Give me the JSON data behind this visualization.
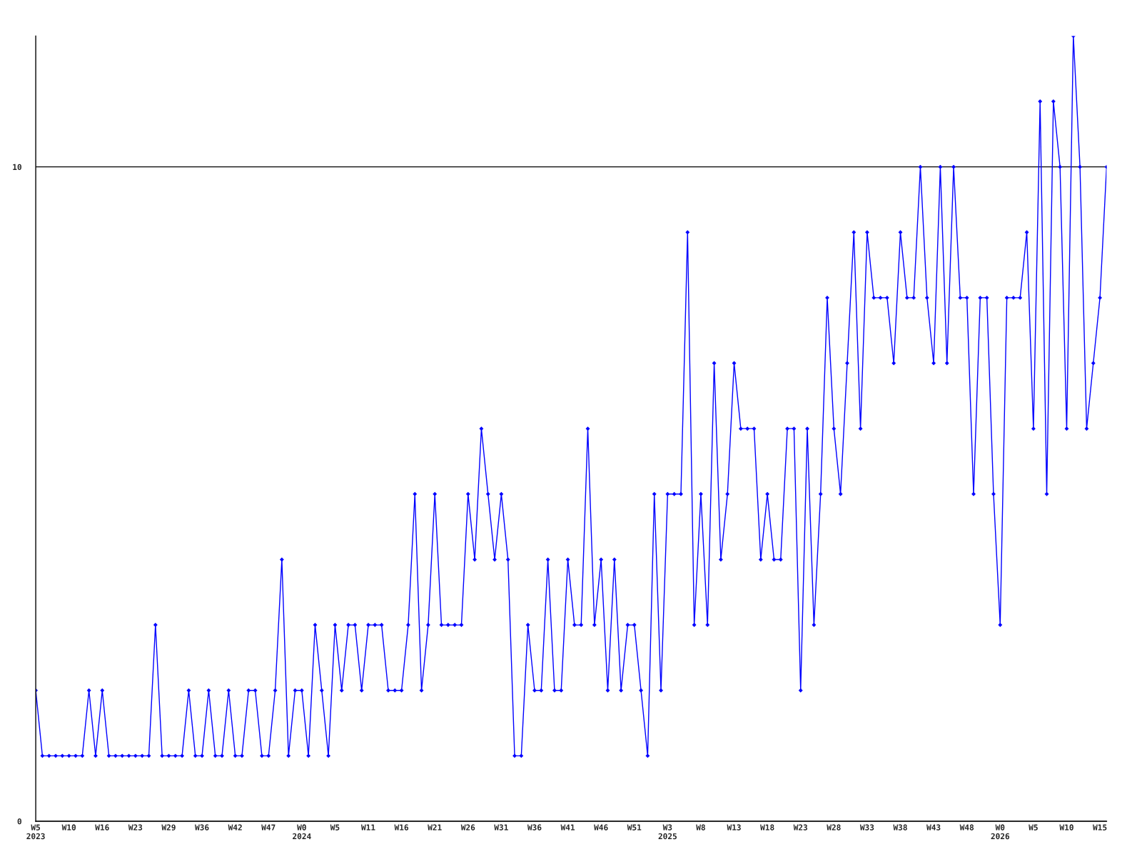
{
  "chart_data": {
    "type": "line",
    "categories": [
      "W5\n2023",
      null,
      null,
      null,
      null,
      "W10",
      null,
      null,
      null,
      null,
      "W16",
      null,
      null,
      null,
      null,
      "W23",
      null,
      null,
      null,
      null,
      "W29",
      null,
      null,
      null,
      null,
      "W36",
      null,
      null,
      null,
      null,
      "W42",
      null,
      null,
      null,
      null,
      "W47",
      null,
      null,
      null,
      null,
      "W0\n2024",
      null,
      null,
      null,
      null,
      "W5",
      null,
      null,
      null,
      null,
      "W11",
      null,
      null,
      null,
      null,
      "W16",
      null,
      null,
      null,
      null,
      "W21",
      null,
      null,
      null,
      null,
      "W26",
      null,
      null,
      null,
      null,
      "W31",
      null,
      null,
      null,
      null,
      "W36",
      null,
      null,
      null,
      null,
      "W41",
      null,
      null,
      null,
      null,
      "W46",
      null,
      null,
      null,
      null,
      "W51",
      null,
      null,
      null,
      null,
      "W3\n2025",
      null,
      null,
      null,
      null,
      "W8",
      null,
      null,
      null,
      null,
      "W13",
      null,
      null,
      null,
      null,
      "W18",
      null,
      null,
      null,
      null,
      "W23",
      null,
      null,
      null,
      null,
      "W28",
      null,
      null,
      null,
      null,
      "W33",
      null,
      null,
      null,
      null,
      "W38",
      null,
      null,
      null,
      null,
      "W43",
      null,
      null,
      null,
      null,
      "W48",
      null,
      null,
      null,
      null,
      "W0\n2026",
      null,
      null,
      null,
      null,
      "W5",
      null,
      null,
      null,
      null,
      "W10",
      null,
      null,
      null,
      null,
      "W15",
      null
    ],
    "series": [
      {
        "color": "#0000ff",
        "values": [
          2,
          1,
          1,
          1,
          1,
          1,
          1,
          1,
          2,
          1,
          2,
          1,
          1,
          1,
          1,
          1,
          1,
          1,
          3,
          1,
          1,
          1,
          1,
          2,
          1,
          1,
          2,
          1,
          1,
          2,
          1,
          1,
          2,
          2,
          1,
          1,
          2,
          4,
          1,
          2,
          2,
          1,
          3,
          2,
          1,
          3,
          2,
          3,
          3,
          2,
          3,
          3,
          3,
          2,
          2,
          2,
          3,
          5,
          2,
          3,
          5,
          3,
          3,
          3,
          3,
          5,
          4,
          6,
          5,
          4,
          5,
          4,
          1,
          1,
          3,
          2,
          2,
          4,
          2,
          2,
          4,
          3,
          3,
          6,
          3,
          4,
          2,
          4,
          2,
          3,
          3,
          2,
          1,
          5,
          2,
          5,
          5,
          5,
          9,
          3,
          5,
          3,
          7,
          4,
          5,
          7,
          6,
          6,
          6,
          4,
          5,
          4,
          4,
          6,
          6,
          2,
          6,
          3,
          5,
          8,
          6,
          5,
          7,
          9,
          6,
          9,
          8,
          8,
          8,
          7,
          9,
          8,
          8,
          10,
          8,
          7,
          10,
          7,
          10,
          8,
          8,
          5,
          8,
          8,
          5,
          3,
          8,
          8,
          8,
          9,
          6,
          11,
          5,
          11,
          10,
          6,
          12,
          10,
          6,
          7,
          8,
          10
        ]
      }
    ],
    "ylim": [
      0,
      12
    ],
    "yticks": [
      0,
      10
    ],
    "grid": "y",
    "marker": "diamond",
    "line_style": "solid"
  }
}
